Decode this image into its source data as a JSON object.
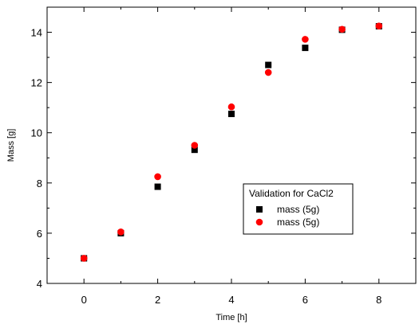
{
  "chart_data": {
    "type": "scatter",
    "xlabel": "Time [h]",
    "ylabel": "Mass [g]",
    "xlim": [
      -1,
      9
    ],
    "ylim": [
      4,
      15
    ],
    "xticks": [
      0,
      2,
      4,
      6,
      8
    ],
    "yticks": [
      4,
      6,
      8,
      10,
      12,
      14
    ],
    "grid": false,
    "legend": {
      "title": "Validation for CaCl2",
      "placement": "center-right"
    },
    "series": [
      {
        "name": "mass (5g)",
        "marker": "square",
        "color": "#000000",
        "x": [
          0,
          1,
          2,
          3,
          4,
          5,
          6,
          7,
          8
        ],
        "y": [
          5.0,
          6.0,
          7.85,
          9.32,
          10.75,
          12.7,
          13.38,
          14.1,
          14.24
        ]
      },
      {
        "name": "mass (5g)",
        "marker": "circle",
        "color": "#ff0000",
        "x": [
          0,
          1,
          2,
          3,
          4,
          5,
          6,
          7,
          8
        ],
        "y": [
          5.0,
          6.05,
          8.25,
          9.5,
          11.03,
          12.4,
          13.72,
          14.12,
          14.25
        ]
      }
    ]
  }
}
